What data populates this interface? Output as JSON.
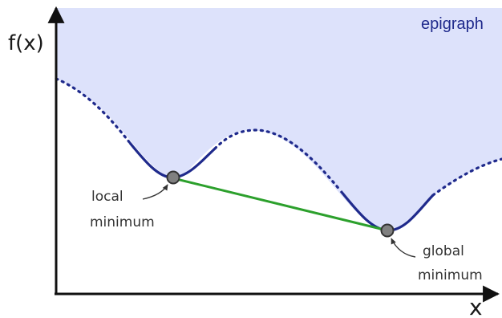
{
  "labels": {
    "y_axis": "f(x)",
    "x_axis": "x",
    "epigraph": "epigraph",
    "local_minimum_line1": "local",
    "local_minimum_line2": "minimum",
    "global_minimum_line1": "global",
    "global_minimum_line2": "minimum"
  },
  "colors": {
    "epigraph_fill": "#dde2fb",
    "curve": "#1f2a8c",
    "chord": "#2ca02c",
    "minimum_point": "#808080",
    "axis": "#111111"
  }
}
